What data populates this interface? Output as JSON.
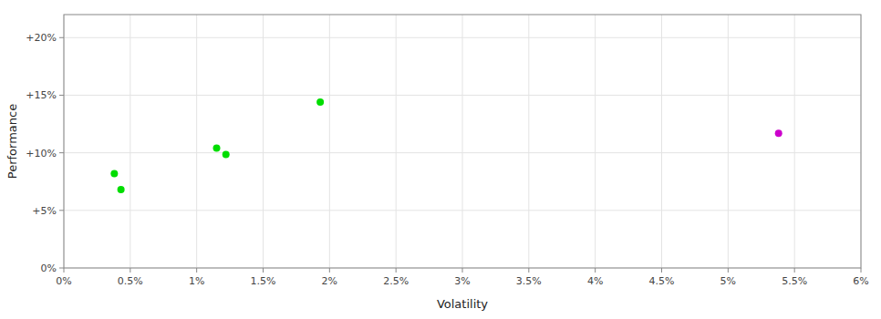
{
  "chart_data": {
    "type": "scatter",
    "xlabel": "Volatility",
    "ylabel": "Performance",
    "xlim": [
      0,
      6.0
    ],
    "ylim": [
      0,
      22
    ],
    "xticks": [
      {
        "value": 0,
        "label": "0%"
      },
      {
        "value": 0.5,
        "label": "0.5%"
      },
      {
        "value": 1.0,
        "label": "1%"
      },
      {
        "value": 1.5,
        "label": "1.5%"
      },
      {
        "value": 2.0,
        "label": "2%"
      },
      {
        "value": 2.5,
        "label": "2.5%"
      },
      {
        "value": 3.0,
        "label": "3%"
      },
      {
        "value": 3.5,
        "label": "3.5%"
      },
      {
        "value": 4.0,
        "label": "4%"
      },
      {
        "value": 4.5,
        "label": "4.5%"
      },
      {
        "value": 5.0,
        "label": "5%"
      },
      {
        "value": 5.5,
        "label": "5.5%"
      },
      {
        "value": 6.0,
        "label": "6%"
      }
    ],
    "yticks": [
      {
        "value": 0,
        "label": "0%"
      },
      {
        "value": 5,
        "label": "+5%"
      },
      {
        "value": 10,
        "label": "+10%"
      },
      {
        "value": 15,
        "label": "+15%"
      },
      {
        "value": 20,
        "label": "+20%"
      }
    ],
    "grid": true,
    "series": [
      {
        "color": "#00dd00",
        "x": [
          0.38,
          0.43,
          1.15,
          1.22,
          1.93
        ],
        "values": [
          8.2,
          6.8,
          10.4,
          9.85,
          14.4
        ]
      },
      {
        "color": "#cc00cc",
        "x": [
          5.38
        ],
        "values": [
          11.7
        ]
      }
    ]
  }
}
